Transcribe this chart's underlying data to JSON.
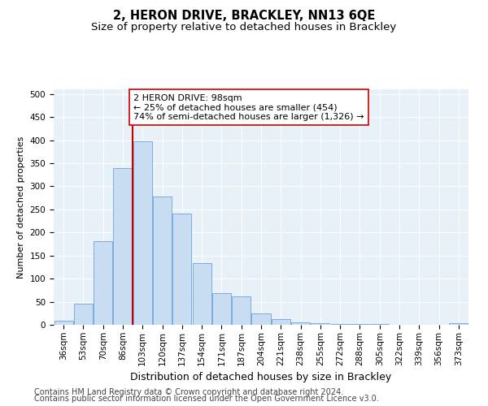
{
  "title": "2, HERON DRIVE, BRACKLEY, NN13 6QE",
  "subtitle": "Size of property relative to detached houses in Brackley",
  "xlabel": "Distribution of detached houses by size in Brackley",
  "ylabel": "Number of detached properties",
  "categories": [
    "36sqm",
    "53sqm",
    "70sqm",
    "86sqm",
    "103sqm",
    "120sqm",
    "137sqm",
    "154sqm",
    "171sqm",
    "187sqm",
    "204sqm",
    "221sqm",
    "238sqm",
    "255sqm",
    "272sqm",
    "288sqm",
    "305sqm",
    "322sqm",
    "339sqm",
    "356sqm",
    "373sqm"
  ],
  "values": [
    8,
    45,
    182,
    340,
    398,
    277,
    241,
    133,
    68,
    61,
    25,
    12,
    5,
    4,
    2,
    1,
    1,
    0,
    0,
    0,
    3
  ],
  "bar_color": "#c9ddf2",
  "bar_edge_color": "#7aace0",
  "vline_x_index": 4,
  "vline_color": "#cc0000",
  "annotation_text": "2 HERON DRIVE: 98sqm\n← 25% of detached houses are smaller (454)\n74% of semi-detached houses are larger (1,326) →",
  "annotation_box_color": "#ffffff",
  "annotation_box_edge_color": "#cc0000",
  "ylim": [
    0,
    510
  ],
  "yticks": [
    0,
    50,
    100,
    150,
    200,
    250,
    300,
    350,
    400,
    450,
    500
  ],
  "footer_line1": "Contains HM Land Registry data © Crown copyright and database right 2024.",
  "footer_line2": "Contains public sector information licensed under the Open Government Licence v3.0.",
  "bg_color": "#e8f0f8",
  "fig_bg_color": "#ffffff",
  "title_fontsize": 10.5,
  "subtitle_fontsize": 9.5,
  "xlabel_fontsize": 9,
  "ylabel_fontsize": 8,
  "tick_fontsize": 7.5,
  "annotation_fontsize": 8,
  "footer_fontsize": 7
}
